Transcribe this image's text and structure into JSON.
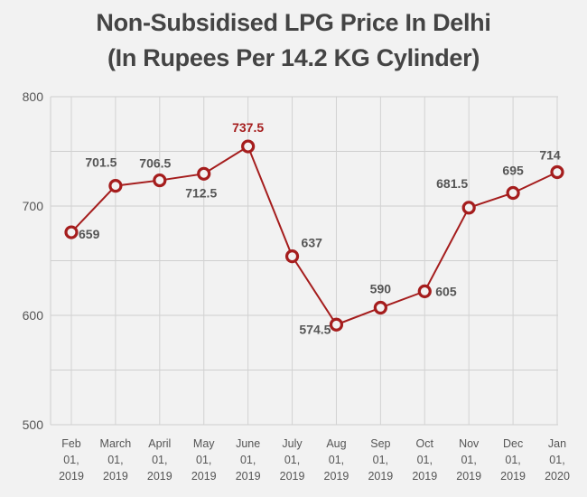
{
  "chart_data": {
    "type": "line",
    "title": "Non-Subsidised LPG Price In Delhi",
    "subtitle": "(In Rupees Per 14.2 KG Cylinder)",
    "xlabel": "",
    "ylabel": "",
    "ylim": [
      500,
      800
    ],
    "yticks": [
      "800",
      "700",
      "600",
      "500"
    ],
    "grid": true,
    "categories": [
      [
        "Feb",
        "01,",
        "2019"
      ],
      [
        "March",
        "01,",
        "2019"
      ],
      [
        "April",
        "01,",
        "2019"
      ],
      [
        "May",
        "01,",
        "2019"
      ],
      [
        "June",
        "01,",
        "2019"
      ],
      [
        "July",
        "01,",
        "2019"
      ],
      [
        "Aug",
        "01,",
        "2019"
      ],
      [
        "Sep",
        "01,",
        "2019"
      ],
      [
        "Oct",
        "01,",
        "2019"
      ],
      [
        "Nov",
        "01,",
        "2019"
      ],
      [
        "Dec",
        "01,",
        "2019"
      ],
      [
        "Jan",
        "01,",
        "2020"
      ]
    ],
    "series": [
      {
        "name": "Price",
        "color": "#a51d1d",
        "values": [
          659,
          701.5,
          706.5,
          712.5,
          737.5,
          637,
          574.5,
          590,
          605,
          681.5,
          695,
          714
        ],
        "labels": [
          "659",
          "701.5",
          "706.5",
          "712.5",
          "737.5",
          "637",
          "574.5",
          "590",
          "605",
          "681.5",
          "695",
          "714"
        ],
        "highlight_index": 4
      }
    ]
  }
}
